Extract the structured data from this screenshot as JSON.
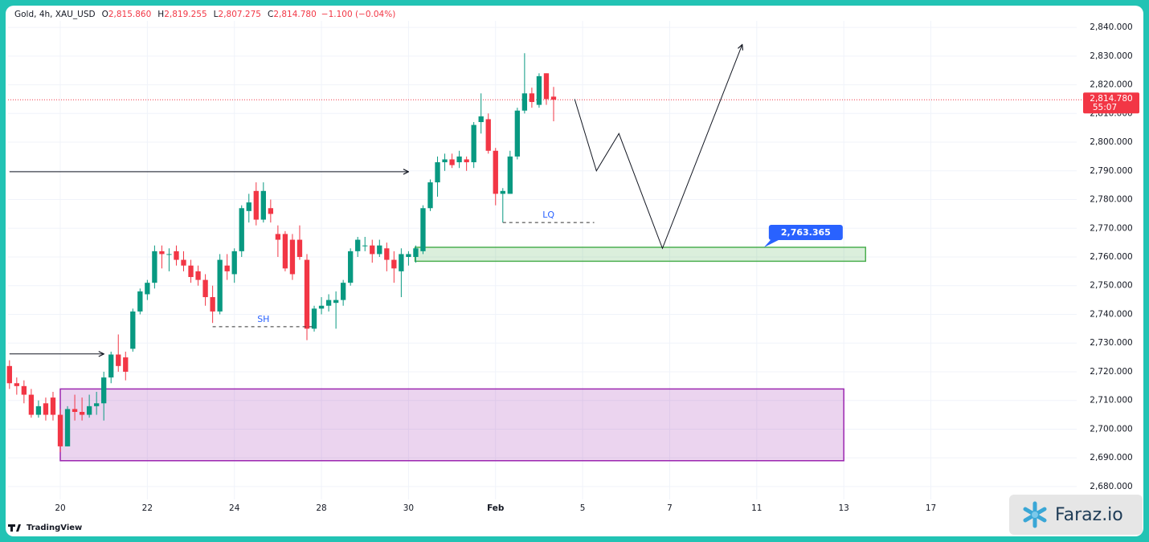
{
  "chart_data": {
    "type": "candlestick",
    "symbol": "Gold, 4h, XAU_USD",
    "ohlc_labels": [
      "O",
      "H",
      "L",
      "C"
    ],
    "ohlc_values": [
      "2,815.860",
      "2,819.255",
      "2,807.275",
      "2,814.780"
    ],
    "change": "−1.100 (−0.04%)",
    "up_color": "#089981",
    "down_color": "#f23645",
    "candles": [
      [
        2722,
        2724,
        2714,
        2716
      ],
      [
        2716,
        2718,
        2712,
        2715
      ],
      [
        2715,
        2717,
        2709,
        2712
      ],
      [
        2712,
        2714,
        2704,
        2705
      ],
      [
        2705,
        2710,
        2704,
        2708
      ],
      [
        2709,
        2711,
        2703,
        2705
      ],
      [
        2711,
        2713,
        2703,
        2705
      ],
      [
        2705,
        2707,
        2692,
        2694
      ],
      [
        2694,
        2708,
        2694,
        2707
      ],
      [
        2707,
        2712,
        2703,
        2706
      ],
      [
        2706,
        2711,
        2703,
        2705
      ],
      [
        2705,
        2712,
        2704,
        2708
      ],
      [
        2708,
        2713,
        2705,
        2709
      ],
      [
        2709,
        2720,
        2703,
        2718
      ],
      [
        2718,
        2727,
        2716,
        2726
      ],
      [
        2726,
        2733,
        2720,
        2722
      ],
      [
        2725,
        2727,
        2717,
        2720
      ],
      [
        2728,
        2742,
        2727,
        2741
      ],
      [
        2741,
        2749,
        2740,
        2748
      ],
      [
        2747,
        2752,
        2745,
        2751
      ],
      [
        2751,
        2764,
        2749,
        2762
      ],
      [
        2762,
        2764,
        2756,
        2761
      ],
      [
        2761,
        2763,
        2755,
        2761
      ],
      [
        2762,
        2764,
        2757,
        2759
      ],
      [
        2759,
        2762,
        2755,
        2757
      ],
      [
        2757,
        2759,
        2751,
        2753
      ],
      [
        2755,
        2757,
        2750,
        2752
      ],
      [
        2752,
        2754,
        2743,
        2746
      ],
      [
        2746,
        2750,
        2737,
        2741
      ],
      [
        2741,
        2761,
        2740,
        2759
      ],
      [
        2757,
        2761,
        2752,
        2755
      ],
      [
        2754,
        2763,
        2751,
        2762
      ],
      [
        2762,
        2778,
        2760,
        2777
      ],
      [
        2776,
        2782,
        2772,
        2779
      ],
      [
        2783,
        2786,
        2771,
        2773
      ],
      [
        2773,
        2786,
        2772,
        2783
      ],
      [
        2777,
        2780,
        2772,
        2775
      ],
      [
        2768,
        2771,
        2760,
        2766
      ],
      [
        2768,
        2769,
        2755,
        2756
      ],
      [
        2766,
        2768,
        2752,
        2754
      ],
      [
        2766,
        2771,
        2759,
        2760
      ],
      [
        2759,
        2761,
        2731,
        2735
      ],
      [
        2735,
        2743,
        2734,
        2742
      ],
      [
        2742,
        2746,
        2740,
        2743
      ],
      [
        2743,
        2747,
        2741,
        2745
      ],
      [
        2744,
        2748,
        2735,
        2745
      ],
      [
        2745,
        2752,
        2743,
        2751
      ],
      [
        2751,
        2763,
        2750,
        2762
      ],
      [
        2762,
        2767,
        2760,
        2766
      ],
      [
        2764,
        2767,
        2762,
        2764
      ],
      [
        2764,
        2766,
        2758,
        2761
      ],
      [
        2761,
        2766,
        2760,
        2764
      ],
      [
        2763,
        2765,
        2755,
        2759
      ],
      [
        2759,
        2762,
        2751,
        2756
      ],
      [
        2755,
        2763,
        2746,
        2761
      ],
      [
        2760,
        2762,
        2757,
        2761
      ],
      [
        2760,
        2764,
        2758,
        2763
      ],
      [
        2762,
        2778,
        2761,
        2777
      ],
      [
        2777,
        2787,
        2776,
        2786
      ],
      [
        2786,
        2795,
        2781,
        2793
      ],
      [
        2793,
        2796,
        2790,
        2794
      ],
      [
        2794,
        2796,
        2791,
        2792
      ],
      [
        2793,
        2797,
        2791,
        2795
      ],
      [
        2794,
        2795,
        2790,
        2793
      ],
      [
        2793,
        2807,
        2791,
        2806
      ],
      [
        2807,
        2817,
        2803,
        2809
      ],
      [
        2808,
        2810,
        2796,
        2797
      ],
      [
        2797,
        2798,
        2778,
        2782
      ],
      [
        2782,
        2784,
        2772,
        2783
      ],
      [
        2782,
        2797,
        2782,
        2795
      ],
      [
        2795,
        2812,
        2794,
        2811
      ],
      [
        2811,
        2831,
        2810,
        2817
      ],
      [
        2817,
        2819,
        2812,
        2814
      ],
      [
        2813,
        2824,
        2812,
        2823
      ],
      [
        2824,
        2824,
        2813,
        2815
      ],
      [
        2815.86,
        2819.255,
        2807.275,
        2814.78
      ]
    ],
    "xlim": [
      -0.2,
      147.1
    ],
    "xticks": [
      {
        "value": 7,
        "label": "20"
      },
      {
        "value": 19,
        "label": "22"
      },
      {
        "value": 31,
        "label": "24"
      },
      {
        "value": 43,
        "label": "28"
      },
      {
        "value": 55,
        "label": "30"
      },
      {
        "value": 67,
        "label": "Feb"
      },
      {
        "value": 79,
        "label": "5"
      },
      {
        "value": 91,
        "label": "7"
      },
      {
        "value": 103,
        "label": "11"
      },
      {
        "value": 115,
        "label": "13"
      },
      {
        "value": 127,
        "label": "17"
      }
    ],
    "ylim": [
      2675.5,
      2847.3
    ],
    "yticks": [
      {
        "value": 2680,
        "label": "2,680.000"
      },
      {
        "value": 2690,
        "label": "2,690.000"
      },
      {
        "value": 2700,
        "label": "2,700.000"
      },
      {
        "value": 2710,
        "label": "2,710.000"
      },
      {
        "value": 2720,
        "label": "2,720.000"
      },
      {
        "value": 2730,
        "label": "2,730.000"
      },
      {
        "value": 2740,
        "label": "2,740.000"
      },
      {
        "value": 2750,
        "label": "2,750.000"
      },
      {
        "value": 2760,
        "label": "2,760.000"
      },
      {
        "value": 2770,
        "label": "2,770.000"
      },
      {
        "value": 2780,
        "label": "2,780.000"
      },
      {
        "value": 2790,
        "label": "2,790.000"
      },
      {
        "value": 2800,
        "label": "2,800.000"
      },
      {
        "value": 2810,
        "label": "2,810.000"
      },
      {
        "value": 2820,
        "label": "2,820.000"
      },
      {
        "value": 2830,
        "label": "2,830.000"
      },
      {
        "value": 2840,
        "label": "2,840.000"
      }
    ],
    "last_price": {
      "value": 2814.78,
      "label": "2,814.780"
    },
    "countdown": "55:07",
    "zones": [
      {
        "x": [
          55.9,
          118
        ],
        "y": [
          2758.5,
          2763.365
        ],
        "color": "#4caf50"
      },
      {
        "x": [
          7,
          115
        ],
        "y": [
          2689,
          2714
        ],
        "color": "#9c27b0"
      }
    ],
    "callout": {
      "x": 104,
      "value": 2763.365,
      "label": "2,763.365"
    },
    "arrows": [
      {
        "x": [
          0,
          55
        ],
        "y": [
          2789.7,
          2789.7
        ]
      },
      {
        "x": [
          0,
          13
        ],
        "y": [
          2726.2,
          2726.2
        ]
      },
      {
        "x": [
          77.9,
          80.9,
          84,
          90,
          101
        ],
        "y": [
          2815,
          2790,
          2803,
          2763,
          2834
        ]
      }
    ],
    "levels": [
      {
        "x": [
          28,
          42
        ],
        "y": 2735.7,
        "label": "SH"
      },
      {
        "x": [
          68,
          80.6
        ],
        "y": 2772,
        "label": "LQ"
      }
    ],
    "watermark": "TradingView",
    "brand": "Faraz.io"
  }
}
